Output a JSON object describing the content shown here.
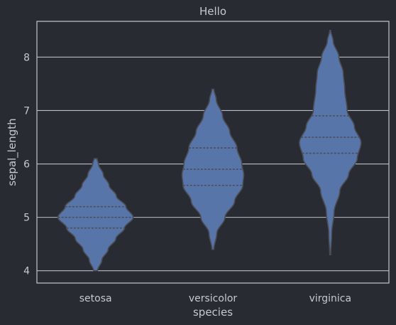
{
  "chart_data": {
    "type": "violin",
    "title": "Hello",
    "xlabel": "species",
    "ylabel": "sepal_length",
    "categories": [
      "setosa",
      "versicolor",
      "virginica"
    ],
    "ylim": [
      3.77,
      8.67
    ],
    "yticks": [
      4,
      5,
      6,
      7,
      8
    ],
    "grid": true,
    "inner": "quartile",
    "violins": [
      {
        "category": "setosa",
        "min": 4.0,
        "max": 6.1,
        "quartiles": [
          4.8,
          5.0,
          5.2
        ],
        "profile": [
          [
            4.0,
            0.04
          ],
          [
            4.2,
            0.13
          ],
          [
            4.4,
            0.26
          ],
          [
            4.6,
            0.42
          ],
          [
            4.8,
            0.6
          ],
          [
            5.0,
            0.78
          ],
          [
            5.2,
            0.63
          ],
          [
            5.4,
            0.43
          ],
          [
            5.6,
            0.28
          ],
          [
            5.8,
            0.16
          ],
          [
            6.0,
            0.06
          ],
          [
            6.1,
            0.03
          ]
        ]
      },
      {
        "category": "versicolor",
        "min": 4.4,
        "max": 7.4,
        "quartiles": [
          5.6,
          5.9,
          6.3
        ],
        "profile": [
          [
            4.4,
            0.02
          ],
          [
            4.7,
            0.08
          ],
          [
            5.0,
            0.25
          ],
          [
            5.3,
            0.45
          ],
          [
            5.6,
            0.62
          ],
          [
            5.8,
            0.64
          ],
          [
            6.0,
            0.6
          ],
          [
            6.3,
            0.5
          ],
          [
            6.6,
            0.35
          ],
          [
            6.9,
            0.2
          ],
          [
            7.2,
            0.07
          ],
          [
            7.4,
            0.02
          ]
        ]
      },
      {
        "category": "virginica",
        "min": 4.3,
        "max": 8.5,
        "quartiles": [
          6.2,
          6.5,
          6.9
        ],
        "profile": [
          [
            4.3,
            0.01
          ],
          [
            4.7,
            0.03
          ],
          [
            5.1,
            0.08
          ],
          [
            5.5,
            0.2
          ],
          [
            5.8,
            0.38
          ],
          [
            6.1,
            0.56
          ],
          [
            6.4,
            0.64
          ],
          [
            6.7,
            0.5
          ],
          [
            7.0,
            0.35
          ],
          [
            7.4,
            0.3
          ],
          [
            7.7,
            0.27
          ],
          [
            8.0,
            0.18
          ],
          [
            8.3,
            0.06
          ],
          [
            8.5,
            0.01
          ]
        ]
      }
    ]
  },
  "colors": {
    "background": "#282b31",
    "plot_frame": "#b8bcc4",
    "grid": "#b8bcc4",
    "violin_fill": "#5875aa",
    "violin_edge": "#4a4d55",
    "text": "#c6c9ce"
  }
}
